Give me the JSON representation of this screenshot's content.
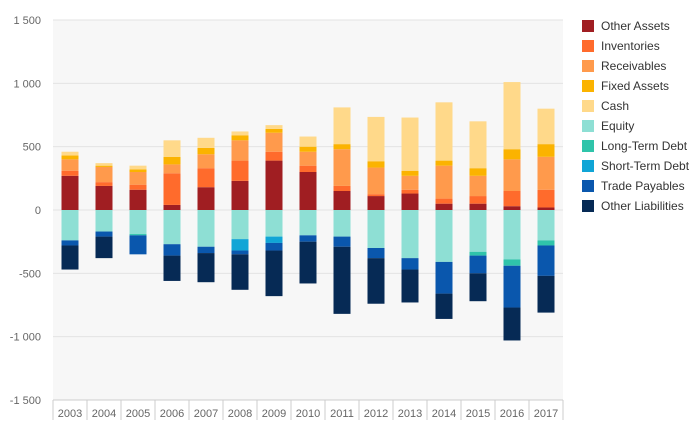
{
  "chart_data": {
    "type": "bar",
    "stacked": true,
    "categories": [
      "2003",
      "2004",
      "2005",
      "2006",
      "2007",
      "2008",
      "2009",
      "2010",
      "2011",
      "2012",
      "2013",
      "2014",
      "2015",
      "2016",
      "2017"
    ],
    "ylim": [
      -1500,
      1500
    ],
    "yticks": [
      -1500,
      -1000,
      -500,
      0,
      500,
      1000,
      1500
    ],
    "ytick_labels": [
      "-1 500",
      "-1 000",
      "-500",
      "0",
      "500",
      "1 000",
      "1 500"
    ],
    "grid": true,
    "legend_position": "right",
    "series": [
      {
        "name": "Other Assets",
        "color": "#a01e22",
        "values": [
          270,
          190,
          160,
          40,
          180,
          230,
          390,
          300,
          150,
          110,
          130,
          50,
          50,
          30,
          20
        ]
      },
      {
        "name": "Inventories",
        "color": "#ff6b2c",
        "values": [
          40,
          30,
          40,
          250,
          150,
          160,
          70,
          50,
          40,
          15,
          30,
          40,
          60,
          120,
          140
        ]
      },
      {
        "name": "Receivables",
        "color": "#ff9a4c",
        "values": [
          90,
          120,
          100,
          70,
          110,
          160,
          150,
          110,
          290,
          210,
          110,
          260,
          160,
          250,
          260
        ]
      },
      {
        "name": "Fixed Assets",
        "color": "#fbb300",
        "values": [
          30,
          10,
          20,
          60,
          50,
          40,
          30,
          40,
          40,
          50,
          40,
          40,
          60,
          80,
          100
        ]
      },
      {
        "name": "Cash",
        "color": "#ffd98a",
        "values": [
          30,
          20,
          30,
          130,
          80,
          30,
          30,
          80,
          290,
          350,
          420,
          460,
          370,
          530,
          280
        ]
      },
      {
        "name": "Equity",
        "color": "#8edfd4",
        "values": [
          -240,
          -170,
          -190,
          -270,
          -290,
          -230,
          -210,
          -200,
          -210,
          -300,
          -380,
          -410,
          -330,
          -390,
          -240
        ]
      },
      {
        "name": "Long-Term Debt",
        "color": "#2fc4aa",
        "values": [
          0,
          0,
          -10,
          0,
          0,
          0,
          0,
          0,
          0,
          0,
          0,
          0,
          -30,
          -50,
          -40
        ]
      },
      {
        "name": "Short-Term Debt",
        "color": "#10a5d6",
        "values": [
          0,
          0,
          0,
          0,
          0,
          -90,
          -50,
          0,
          0,
          0,
          0,
          0,
          0,
          0,
          0
        ]
      },
      {
        "name": "Trade Payables",
        "color": "#0a57ad",
        "values": [
          -40,
          -40,
          -150,
          -90,
          -50,
          -30,
          -60,
          -50,
          -80,
          -80,
          -90,
          -250,
          -140,
          -330,
          -240
        ]
      },
      {
        "name": "Other Liabilities",
        "color": "#062a55",
        "values": [
          -190,
          -170,
          0,
          -200,
          -230,
          -280,
          -360,
          -330,
          -530,
          -360,
          -260,
          -200,
          -220,
          -260,
          -290
        ]
      }
    ]
  }
}
